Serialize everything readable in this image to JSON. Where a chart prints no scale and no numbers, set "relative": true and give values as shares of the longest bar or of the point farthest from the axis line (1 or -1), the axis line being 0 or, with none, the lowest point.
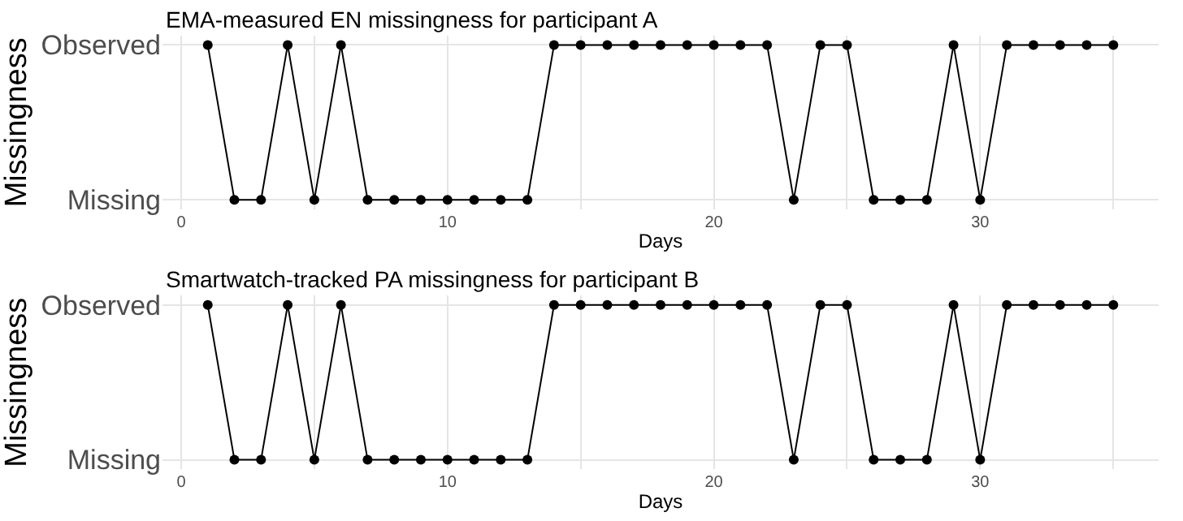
{
  "chart_data": [
    {
      "type": "line",
      "title": "EMA-measured EN missingness for participant A",
      "xlabel": "Days",
      "ylabel": "Missingness",
      "x": [
        1,
        2,
        3,
        4,
        5,
        6,
        7,
        8,
        9,
        10,
        11,
        12,
        13,
        14,
        15,
        16,
        17,
        18,
        19,
        20,
        21,
        22,
        23,
        24,
        25,
        26,
        27,
        28,
        29,
        30,
        31,
        32,
        33,
        34,
        35
      ],
      "series": [
        {
          "color": "#000000",
          "values": [
            1,
            0,
            0,
            1,
            0,
            1,
            0,
            0,
            0,
            0,
            0,
            0,
            0,
            1,
            1,
            1,
            1,
            1,
            1,
            1,
            1,
            1,
            0,
            1,
            1,
            0,
            0,
            0,
            1,
            0,
            1,
            1,
            1,
            1,
            1
          ]
        }
      ],
      "xlim": [
        -0.7,
        36.7
      ],
      "xticks": [
        0,
        {
          "value": 5,
          "label": null
        },
        10,
        {
          "value": 15,
          "label": null
        },
        20,
        {
          "value": 25,
          "label": null
        },
        30,
        {
          "value": 35,
          "label": null
        }
      ],
      "relative": true,
      "y_categories": [
        "Observed",
        "Missing"
      ],
      "grid": true,
      "marker": "circle",
      "line_style": "solid"
    },
    {
      "type": "line",
      "title": "Smartwatch-tracked PA missingness for participant B",
      "xlabel": "Days",
      "ylabel": "Missingness",
      "x": [
        1,
        2,
        3,
        4,
        5,
        6,
        7,
        8,
        9,
        10,
        11,
        12,
        13,
        14,
        15,
        16,
        17,
        18,
        19,
        20,
        21,
        22,
        23,
        24,
        25,
        26,
        27,
        28,
        29,
        30,
        31,
        32,
        33,
        34,
        35
      ],
      "series": [
        {
          "color": "#000000",
          "values": [
            1,
            0,
            0,
            1,
            0,
            1,
            0,
            0,
            0,
            0,
            0,
            0,
            0,
            1,
            1,
            1,
            1,
            1,
            1,
            1,
            1,
            1,
            0,
            1,
            1,
            0,
            0,
            0,
            1,
            0,
            1,
            1,
            1,
            1,
            1
          ]
        }
      ],
      "xlim": [
        -0.7,
        36.7
      ],
      "xticks": [
        0,
        {
          "value": 5,
          "label": null
        },
        10,
        {
          "value": 15,
          "label": null
        },
        20,
        {
          "value": 25,
          "label": null
        },
        30,
        {
          "value": 35,
          "label": null
        }
      ],
      "relative": true,
      "y_categories": [
        "Observed",
        "Missing"
      ],
      "grid": true,
      "marker": "circle",
      "line_style": "solid"
    }
  ]
}
